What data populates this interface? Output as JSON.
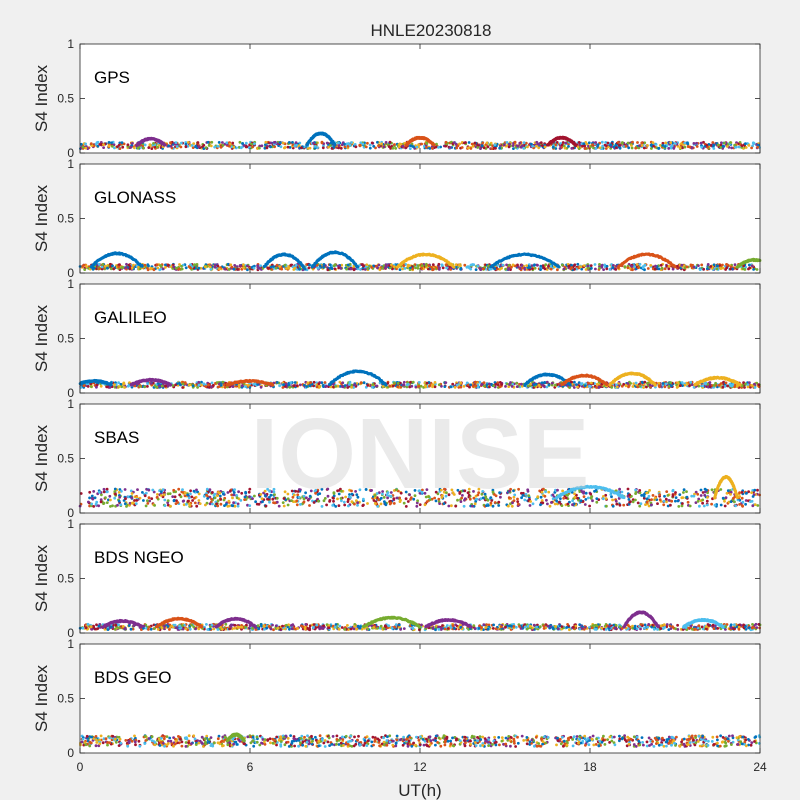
{
  "figure": {
    "title": "HNLE20230818",
    "watermark": "IONISE",
    "xlabel": "UT(h)",
    "xticks": [
      "0",
      "6",
      "12",
      "18",
      "24"
    ],
    "xlim": [
      0,
      24
    ]
  },
  "colors": [
    "#0072BD",
    "#D95319",
    "#EDB120",
    "#7E2F8E",
    "#77AC30",
    "#4DBEEE",
    "#A2142F"
  ],
  "chart_data": [
    {
      "type": "scatter",
      "panel_label": "GPS",
      "ylabel": "S4 Index",
      "xlim": [
        0,
        24
      ],
      "ylim": [
        0,
        1
      ],
      "yticks": [
        "0",
        "0.5",
        "1"
      ],
      "baseline_range": [
        0.04,
        0.1
      ],
      "bumps": [
        [
          8.5,
          0.18,
          0.5
        ],
        [
          12.0,
          0.14,
          0.5
        ],
        [
          17.0,
          0.14,
          0.5
        ],
        [
          2.5,
          0.13,
          0.5
        ]
      ]
    },
    {
      "type": "scatter",
      "panel_label": "GLONASS",
      "ylabel": "S4 Index",
      "xlim": [
        0,
        24
      ],
      "ylim": [
        0,
        1
      ],
      "yticks": [
        "0",
        "0.5",
        "1"
      ],
      "baseline_range": [
        0.03,
        0.08
      ],
      "bumps": [
        [
          1.3,
          0.18,
          0.9
        ],
        [
          7.2,
          0.17,
          0.7
        ],
        [
          9.0,
          0.19,
          0.8
        ],
        [
          12.2,
          0.17,
          1.0
        ],
        [
          15.7,
          0.17,
          1.2
        ],
        [
          20.0,
          0.17,
          1.0
        ],
        [
          23.8,
          0.12,
          0.6
        ]
      ]
    },
    {
      "type": "scatter",
      "panel_label": "GALILEO",
      "ylabel": "S4 Index",
      "xlim": [
        0,
        24
      ],
      "ylim": [
        0,
        1
      ],
      "yticks": [
        "0",
        "0.5",
        "1"
      ],
      "baseline_range": [
        0.05,
        0.1
      ],
      "bumps": [
        [
          0.5,
          0.11,
          0.6
        ],
        [
          2.5,
          0.12,
          0.7
        ],
        [
          6.0,
          0.11,
          0.8
        ],
        [
          9.8,
          0.2,
          1.0
        ],
        [
          16.5,
          0.17,
          0.8
        ],
        [
          17.8,
          0.16,
          0.8
        ],
        [
          19.5,
          0.18,
          0.8
        ],
        [
          22.5,
          0.14,
          0.8
        ]
      ]
    },
    {
      "type": "scatter",
      "panel_label": "SBAS",
      "ylabel": "S4 Index",
      "xlim": [
        0,
        24
      ],
      "ylim": [
        0,
        1
      ],
      "yticks": [
        "0",
        "0.5",
        "1"
      ],
      "baseline_range": [
        0.06,
        0.22
      ],
      "bumps": [
        [
          22.8,
          0.33,
          0.4
        ],
        [
          18.0,
          0.24,
          1.2
        ]
      ]
    },
    {
      "type": "scatter",
      "panel_label": "BDS NGEO",
      "ylabel": "S4 Index",
      "xlim": [
        0,
        24
      ],
      "ylim": [
        0,
        1
      ],
      "yticks": [
        "0",
        "0.5",
        "1"
      ],
      "baseline_range": [
        0.03,
        0.08
      ],
      "bumps": [
        [
          1.5,
          0.11,
          0.7
        ],
        [
          3.5,
          0.13,
          0.8
        ],
        [
          5.5,
          0.13,
          0.7
        ],
        [
          11.0,
          0.14,
          1.0
        ],
        [
          13.0,
          0.12,
          0.8
        ],
        [
          19.8,
          0.19,
          0.6
        ],
        [
          22.0,
          0.12,
          0.7
        ]
      ]
    },
    {
      "type": "scatter",
      "panel_label": "BDS GEO",
      "ylabel": "S4 Index",
      "xlim": [
        0,
        24
      ],
      "ylim": [
        0,
        1
      ],
      "yticks": [
        "0",
        "0.5",
        "1"
      ],
      "baseline_range": [
        0.06,
        0.16
      ],
      "bumps": [
        [
          5.5,
          0.17,
          0.3
        ]
      ]
    }
  ]
}
